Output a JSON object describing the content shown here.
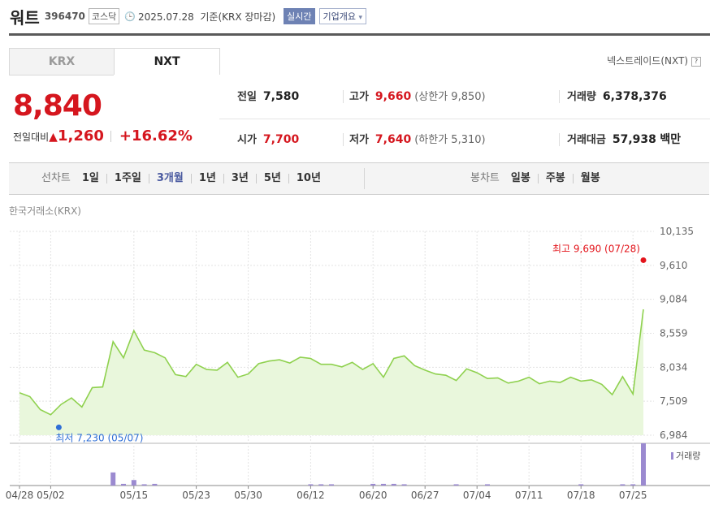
{
  "header": {
    "name": "워트",
    "code": "396470",
    "market": "코스닥",
    "date": "2025.07.28",
    "basis": "기준(KRX 장마감)",
    "realtime_label": "실시간",
    "company_info_label": "기업개요",
    "dropdown_glyph": "▾",
    "clock_glyph": "🕒"
  },
  "tabs": [
    {
      "label": "KRX",
      "active": false
    },
    {
      "label": "NXT",
      "active": true
    }
  ],
  "nxt_link": {
    "label": "넥스트레이드(NXT)",
    "help": "?"
  },
  "price": {
    "current": "8,840",
    "change_label": "전일대비",
    "change_arrow": "▲",
    "change": "1,260",
    "change_pct": "+16.62%"
  },
  "quote": {
    "prev": {
      "label": "전일",
      "value": "7,580"
    },
    "high": {
      "label": "고가",
      "value": "9,660",
      "limit": "(상한가 9,850)"
    },
    "volume": {
      "label": "거래량",
      "value": "6,378,376"
    },
    "open": {
      "label": "시가",
      "value": "7,700"
    },
    "low": {
      "label": "저가",
      "value": "7,640",
      "limit": "(하한가 5,310)"
    },
    "amount": {
      "label": "거래대금",
      "value": "57,938",
      "unit": "백만"
    }
  },
  "toolbar": {
    "line_label": "선차트",
    "line_options": [
      "1일",
      "1주일",
      "3개월",
      "1년",
      "3년",
      "5년",
      "10년"
    ],
    "line_selected": "3개월",
    "candle_label": "봉차트",
    "candle_options": [
      "일봉",
      "주봉",
      "월봉"
    ]
  },
  "exchange_label": "한국거래소(KRX)",
  "colors": {
    "up": "#d5161e",
    "line": "#8fd14f",
    "fill": "#e9f7dc",
    "volume": "#9b8ad0",
    "low_marker": "#2f6fd6",
    "high_marker": "#e3141b"
  },
  "chart_data": {
    "type": "area",
    "y_ticks": [
      "10,135",
      "9,610",
      "9,084",
      "8,559",
      "8,034",
      "7,509",
      "6,984"
    ],
    "ylim": [
      6984,
      10135
    ],
    "x_tick_labels": [
      "04/28",
      "05/02",
      "05/15",
      "05/23",
      "05/30",
      "06/12",
      "06/20",
      "06/27",
      "07/04",
      "07/11",
      "07/18",
      "07/25"
    ],
    "x_tick_index": [
      0,
      3,
      11,
      17,
      22,
      28,
      34,
      39,
      44,
      49,
      54,
      59
    ],
    "prices": [
      7640,
      7580,
      7380,
      7300,
      7460,
      7560,
      7420,
      7720,
      7730,
      8430,
      8180,
      8600,
      8300,
      8260,
      8180,
      7920,
      7890,
      8080,
      8000,
      7990,
      8110,
      7880,
      7930,
      8090,
      8130,
      8150,
      8100,
      8190,
      8170,
      8080,
      8080,
      8040,
      8110,
      8000,
      8090,
      7880,
      8170,
      8210,
      8060,
      7990,
      7930,
      7910,
      7830,
      8010,
      7950,
      7860,
      7870,
      7790,
      7820,
      7880,
      7780,
      7820,
      7800,
      7880,
      7820,
      7840,
      7770,
      7610,
      7890,
      7620,
      8930
    ],
    "volume": [
      0,
      0,
      0,
      0,
      0,
      0,
      0,
      0,
      0,
      0.31,
      0.04,
      0.13,
      0.03,
      0.04,
      0,
      0,
      0,
      0,
      0,
      0,
      0,
      0,
      0,
      0,
      0,
      0,
      0,
      0,
      0.03,
      0.03,
      0.03,
      0,
      0,
      0,
      0.04,
      0.04,
      0.04,
      0.03,
      0,
      0,
      0,
      0,
      0.03,
      0,
      0,
      0.03,
      0,
      0,
      0,
      0,
      0,
      0,
      0,
      0,
      0.03,
      0,
      0,
      0,
      0.03,
      0.03,
      1.0
    ],
    "high": {
      "label": "최고 9,690 (07/28)",
      "value": 9690
    },
    "low": {
      "label": "최저 7,230 (05/07)",
      "value": 7230
    },
    "volume_legend": "거래량"
  }
}
